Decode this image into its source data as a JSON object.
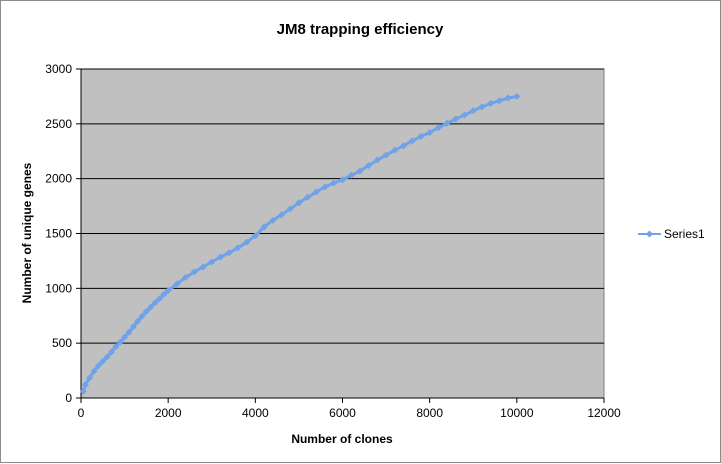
{
  "chart_data": {
    "type": "line",
    "title": "JM8 trapping efficiency",
    "xlabel": "Number of clones",
    "ylabel": "Number of unique genes",
    "xlim": [
      0,
      12000
    ],
    "ylim": [
      0,
      3000
    ],
    "x_ticks": [
      0,
      2000,
      4000,
      6000,
      8000,
      10000,
      12000
    ],
    "y_ticks": [
      0,
      500,
      1000,
      1500,
      2000,
      2500,
      3000
    ],
    "grid": "horizontal major gridlines",
    "plot_background": "#c0c0c0",
    "legend_position": "right",
    "series": [
      {
        "name": "Series1",
        "color": "#6fa2e8",
        "marker": "diamond",
        "x": [
          50,
          100,
          200,
          300,
          400,
          500,
          600,
          700,
          800,
          900,
          1000,
          1100,
          1200,
          1300,
          1400,
          1500,
          1600,
          1700,
          1800,
          1900,
          2000,
          2200,
          2400,
          2600,
          2800,
          3000,
          3200,
          3400,
          3600,
          3800,
          4000,
          4200,
          4400,
          4600,
          4800,
          5000,
          5200,
          5400,
          5600,
          5800,
          6000,
          6200,
          6400,
          6600,
          6800,
          7000,
          7200,
          7400,
          7600,
          7800,
          8000,
          8200,
          8400,
          8600,
          8800,
          9000,
          9200,
          9400,
          9600,
          9800,
          10000
        ],
        "y": [
          60,
          120,
          185,
          245,
          295,
          335,
          375,
          420,
          470,
          510,
          555,
          600,
          650,
          700,
          745,
          790,
          830,
          870,
          905,
          945,
          980,
          1040,
          1100,
          1150,
          1195,
          1240,
          1285,
          1325,
          1370,
          1420,
          1480,
          1560,
          1620,
          1670,
          1725,
          1780,
          1830,
          1880,
          1925,
          1960,
          1990,
          2030,
          2070,
          2120,
          2170,
          2215,
          2260,
          2300,
          2345,
          2385,
          2420,
          2465,
          2505,
          2545,
          2580,
          2620,
          2655,
          2685,
          2710,
          2735,
          2750
        ]
      }
    ]
  }
}
